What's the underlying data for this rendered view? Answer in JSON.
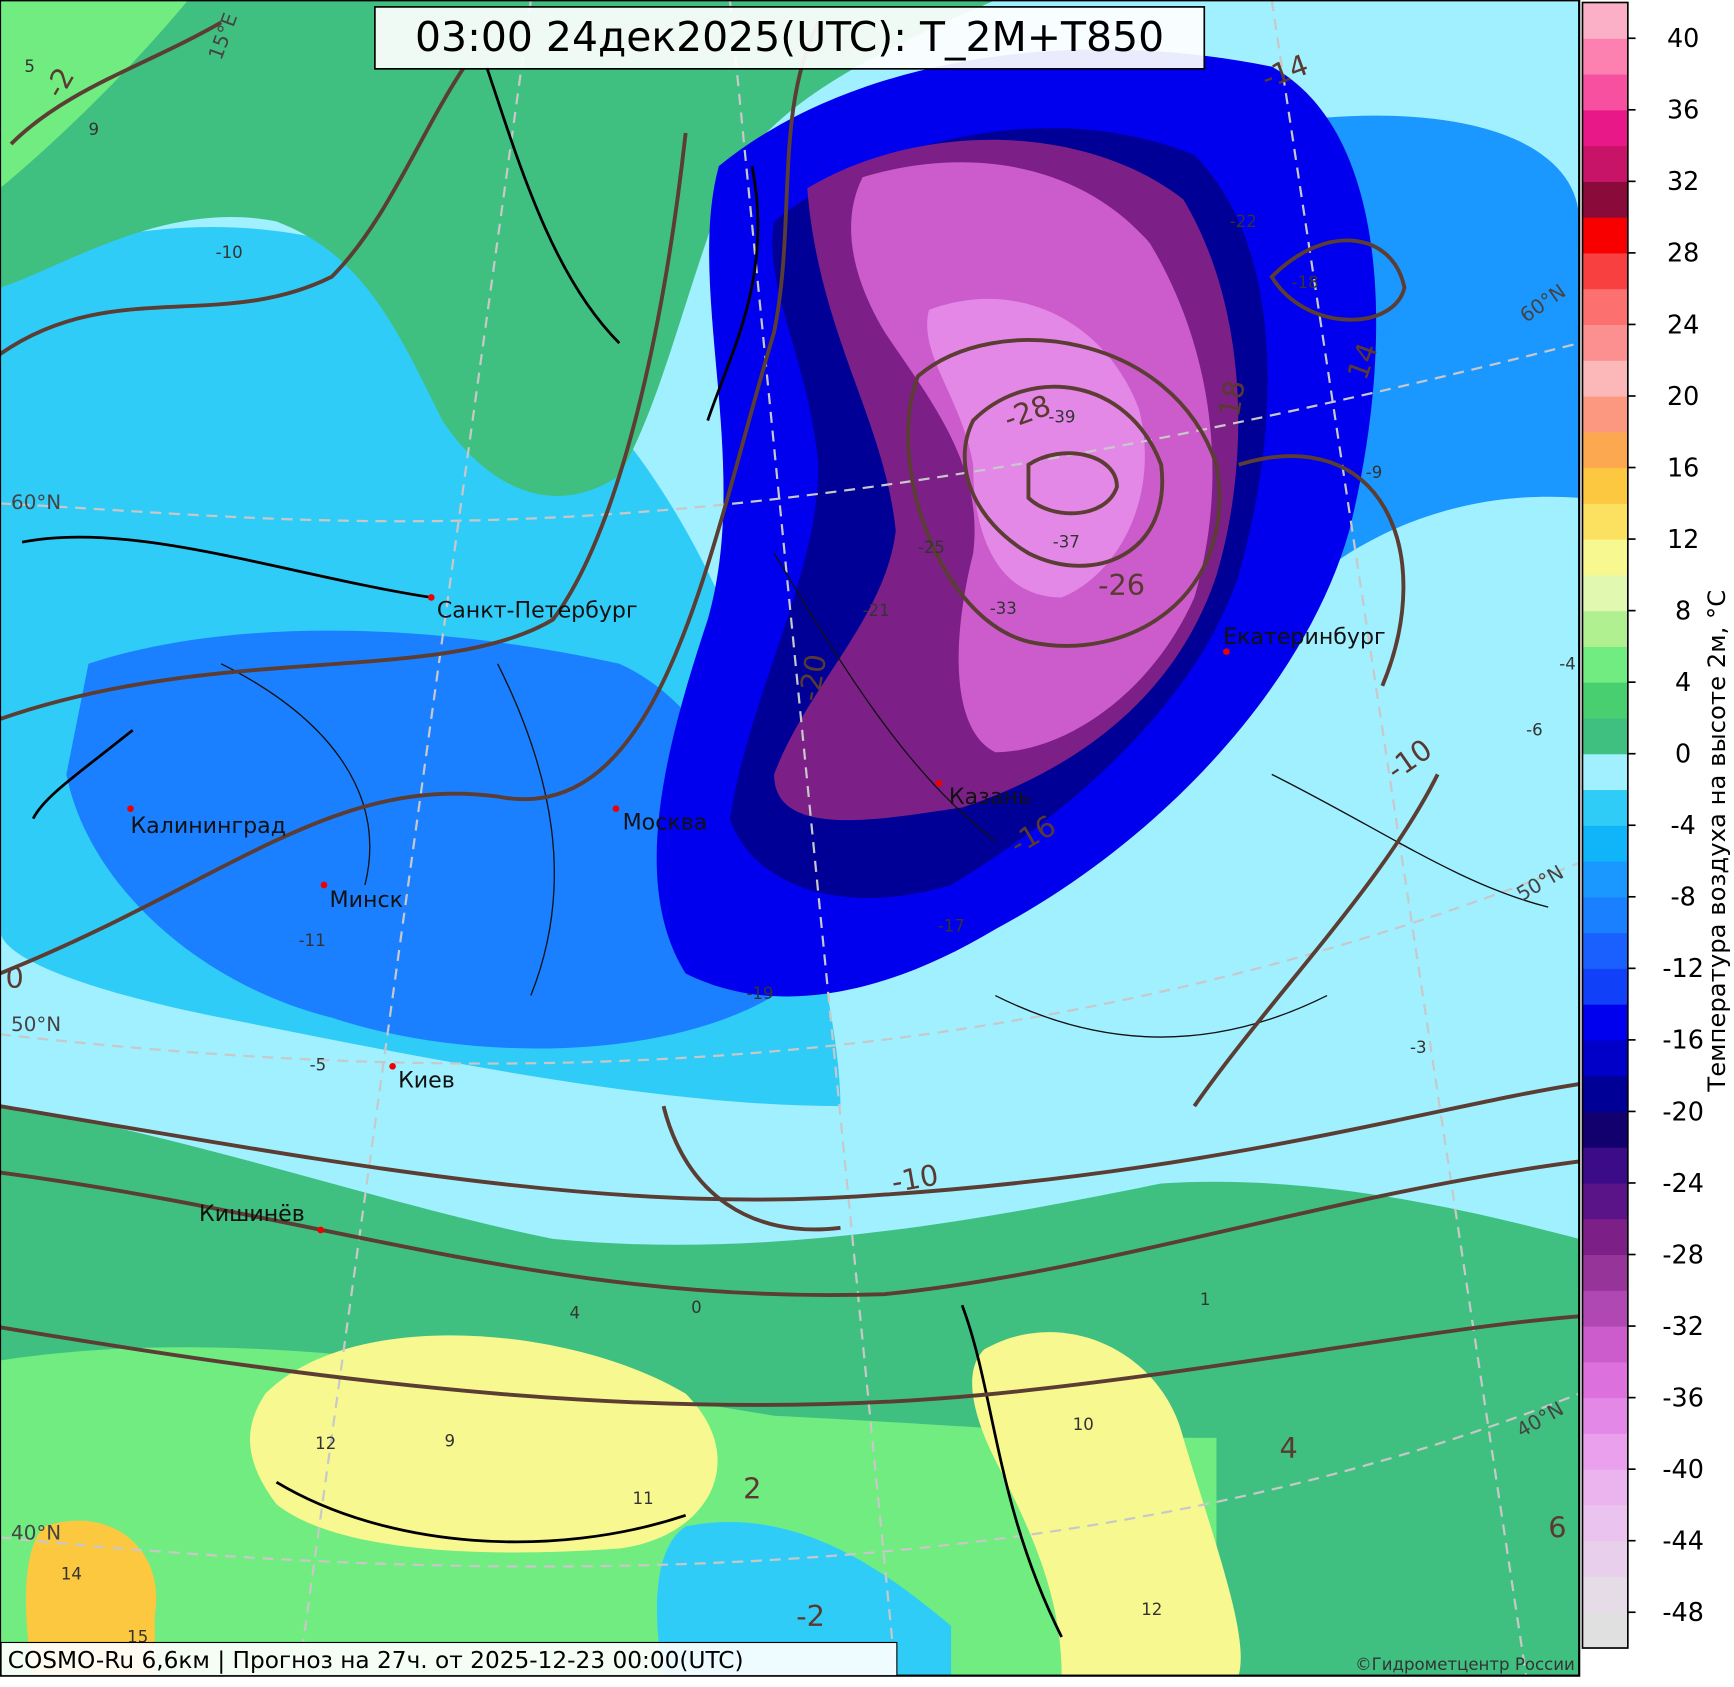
{
  "header": {
    "title": "03:00 24дек2025(UTC): T_2M+T850"
  },
  "footer": {
    "source": "COSMO-Ru 6,6км | Прогноз на  27ч. от 2025-12-23 00:00(UTC)",
    "copyright": "©Гидрометцентр России"
  },
  "cities": [
    "Санкт-Петербург",
    "Москва",
    "Калининград",
    "Минск",
    "Киев",
    "Кишинёв",
    "Казань",
    "Екатеринбург"
  ],
  "graticule_labels": [
    "60°N",
    "50°N",
    "40°N",
    "60°N",
    "50°N",
    "40°N",
    "15°E"
  ],
  "t850_labels": [
    "-2",
    "-14",
    "14",
    "18",
    "-28",
    "-26",
    "-20",
    "-10",
    "-16",
    "-10",
    "2",
    "4",
    "6",
    "-2",
    "0"
  ],
  "t2m_labels": [
    "5",
    "9",
    "-10",
    "-39",
    "-37",
    "-33",
    "-25",
    "-21",
    "-19",
    "-17",
    "-11",
    "-5",
    "-3",
    "0",
    "1",
    "4",
    "9",
    "12",
    "11",
    "10",
    "12",
    "15",
    "14",
    "-22",
    "-18",
    "-6",
    "-4",
    "-9"
  ],
  "colorbar": {
    "label": "Температура воздуха на высоте 2м, °C",
    "levels": [
      -50,
      -48,
      -46,
      -44,
      -42,
      -40,
      -38,
      -36,
      -34,
      -32,
      -30,
      -28,
      -26,
      -24,
      -22,
      -20,
      -18,
      -16,
      -14,
      -12,
      -10,
      -8,
      -6,
      -4,
      -2,
      0,
      2,
      4,
      6,
      8,
      10,
      12,
      14,
      16,
      18,
      20,
      22,
      24,
      26,
      28,
      30,
      32,
      34,
      36,
      38,
      40,
      42
    ],
    "colors": [
      "#e0e0e0",
      "#e6dce8",
      "#e8d0ec",
      "#eac4ee",
      "#ecb4ee",
      "#eaa0ec",
      "#e488e8",
      "#dc70dc",
      "#cc5ccc",
      "#b048b4",
      "#96349a",
      "#7c2088",
      "#5a1488",
      "#3c0c88",
      "#12006e",
      "#000096",
      "#0000c8",
      "#0000ee",
      "#1040f8",
      "#1a60ff",
      "#1a80ff",
      "#1a98ff",
      "#10b4f8",
      "#30ccf8",
      "#a0f0ff",
      "#40c080",
      "#48d070",
      "#70ec80",
      "#b0f090",
      "#e0f8b0",
      "#f8f890",
      "#fce060",
      "#fcc840",
      "#fca850",
      "#fc9880",
      "#fcb8b8",
      "#fc9090",
      "#fc7070",
      "#f84040",
      "#f80000",
      "#8a0a3a",
      "#c81468",
      "#e81888",
      "#f850a0",
      "#fc80b0",
      "#fcb0c8"
    ],
    "ticks": [
      -48,
      -44,
      -40,
      -36,
      -32,
      -28,
      -24,
      -20,
      -16,
      -12,
      -8,
      -4,
      0,
      4,
      8,
      12,
      16,
      20,
      24,
      28,
      32,
      36,
      40
    ]
  }
}
